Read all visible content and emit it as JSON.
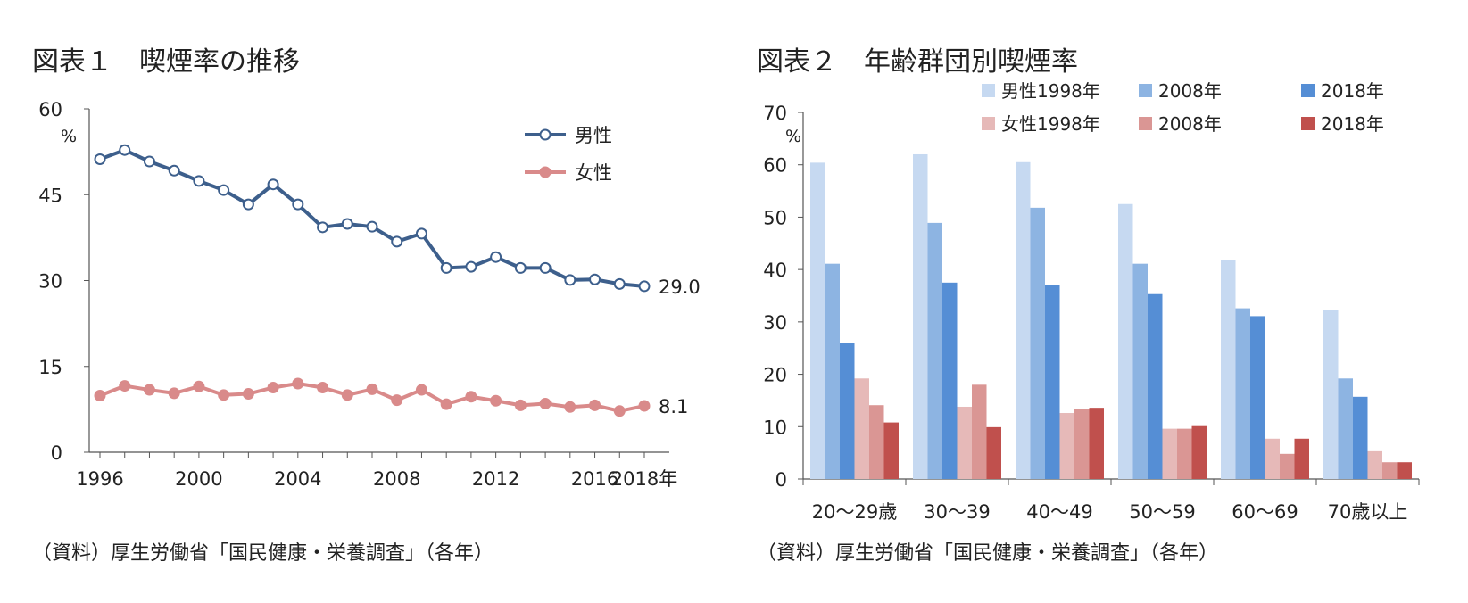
{
  "figure1": {
    "title": "図表１　喫煙率の推移",
    "source": "（資料）厚生労働省「国民健康・栄養調査」（各年）"
  },
  "figure2": {
    "title": "図表２　年齢群団別喫煙率",
    "source": "（資料）厚生労働省「国民健康・栄養調査」（各年）"
  },
  "chart_data": [
    {
      "type": "line",
      "ylabel": "%",
      "ylim": [
        0,
        60
      ],
      "yticks": [
        0,
        15,
        30,
        45,
        60
      ],
      "x": [
        1996,
        1997,
        1998,
        1999,
        2000,
        2001,
        2002,
        2003,
        2004,
        2005,
        2006,
        2007,
        2008,
        2009,
        2010,
        2011,
        2012,
        2013,
        2014,
        2015,
        2016,
        2017,
        2018
      ],
      "xtick_labels": [
        "1996",
        "2000",
        "2004",
        "2008",
        "2012",
        "2016",
        "2018年"
      ],
      "xtick_values": [
        1996,
        2000,
        2004,
        2008,
        2012,
        2016,
        2018
      ],
      "legend_position": "top-right",
      "series": [
        {
          "name": "男性",
          "color": "#3d5f8c",
          "marker": "open-circle",
          "values": [
            51.2,
            52.8,
            50.8,
            49.2,
            47.4,
            45.8,
            43.3,
            46.8,
            43.3,
            39.3,
            39.9,
            39.4,
            36.8,
            38.2,
            32.2,
            32.4,
            34.1,
            32.2,
            32.2,
            30.1,
            30.2,
            29.4,
            29.0
          ],
          "end_label": "29.0"
        },
        {
          "name": "女性",
          "color": "#d98a8a",
          "marker": "filled-circle",
          "values": [
            9.9,
            11.6,
            10.9,
            10.3,
            11.5,
            10.0,
            10.2,
            11.3,
            12.0,
            11.3,
            10.0,
            11.0,
            9.1,
            10.9,
            8.4,
            9.7,
            9.0,
            8.2,
            8.5,
            7.9,
            8.2,
            7.2,
            8.1
          ],
          "end_label": "8.1"
        }
      ]
    },
    {
      "type": "bar",
      "ylabel": "%",
      "ylim": [
        0,
        70
      ],
      "yticks": [
        0,
        10,
        20,
        30,
        40,
        50,
        60,
        70
      ],
      "categories": [
        "20～29歳",
        "30～39",
        "40～49",
        "50～59",
        "60～69",
        "70歳以上"
      ],
      "legend_position": "top",
      "series": [
        {
          "name": "男性1998年",
          "color": "#c6d9f1",
          "values": [
            60.4,
            62.0,
            60.5,
            52.5,
            41.8,
            32.2
          ]
        },
        {
          "name": "2008年",
          "color": "#8db4e2",
          "values": [
            41.1,
            48.9,
            51.8,
            41.1,
            32.6,
            19.2
          ]
        },
        {
          "name": "2018年",
          "color": "#558ed5",
          "values": [
            25.9,
            37.5,
            37.1,
            35.3,
            31.1,
            15.7
          ]
        },
        {
          "name": "女性1998年",
          "color": "#e6b9b8",
          "values": [
            19.2,
            13.8,
            12.6,
            9.6,
            7.7,
            5.3
          ]
        },
        {
          "name": "2008年",
          "color": "#da9694",
          "values": [
            14.1,
            18.0,
            13.3,
            9.6,
            4.8,
            3.2
          ]
        },
        {
          "name": "2018年",
          "color": "#c0504d",
          "values": [
            10.8,
            9.9,
            13.6,
            10.1,
            7.7,
            3.2
          ]
        }
      ]
    }
  ]
}
